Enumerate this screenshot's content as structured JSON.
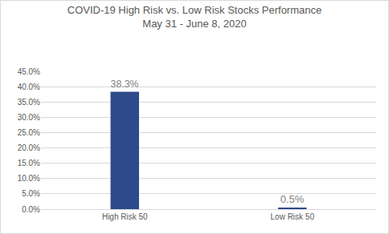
{
  "chart_data": {
    "type": "bar",
    "title": "COVID-19 High Risk vs. Low Risk Stocks Performance",
    "subtitle": "May 31 - June 8, 2020",
    "categories": [
      "High Risk 50",
      "Low Risk 50"
    ],
    "values": [
      38.3,
      0.5
    ],
    "value_labels": [
      "38.3%",
      "0.5%"
    ],
    "data_labels": true,
    "color": "#2e4a8b",
    "ylim": [
      0,
      45
    ],
    "yticks": [
      {
        "value": 0,
        "label": "0.0%"
      },
      {
        "value": 5,
        "label": "5.0%"
      },
      {
        "value": 10,
        "label": "10.0%"
      },
      {
        "value": 15,
        "label": "15.0%"
      },
      {
        "value": 20,
        "label": "20.0%"
      },
      {
        "value": 25,
        "label": "25.0%"
      },
      {
        "value": 30,
        "label": "30.0%"
      },
      {
        "value": 35,
        "label": "35.0%"
      },
      {
        "value": 40,
        "label": "40.0%"
      },
      {
        "value": 45,
        "label": "45.0%"
      }
    ],
    "grid": true
  }
}
